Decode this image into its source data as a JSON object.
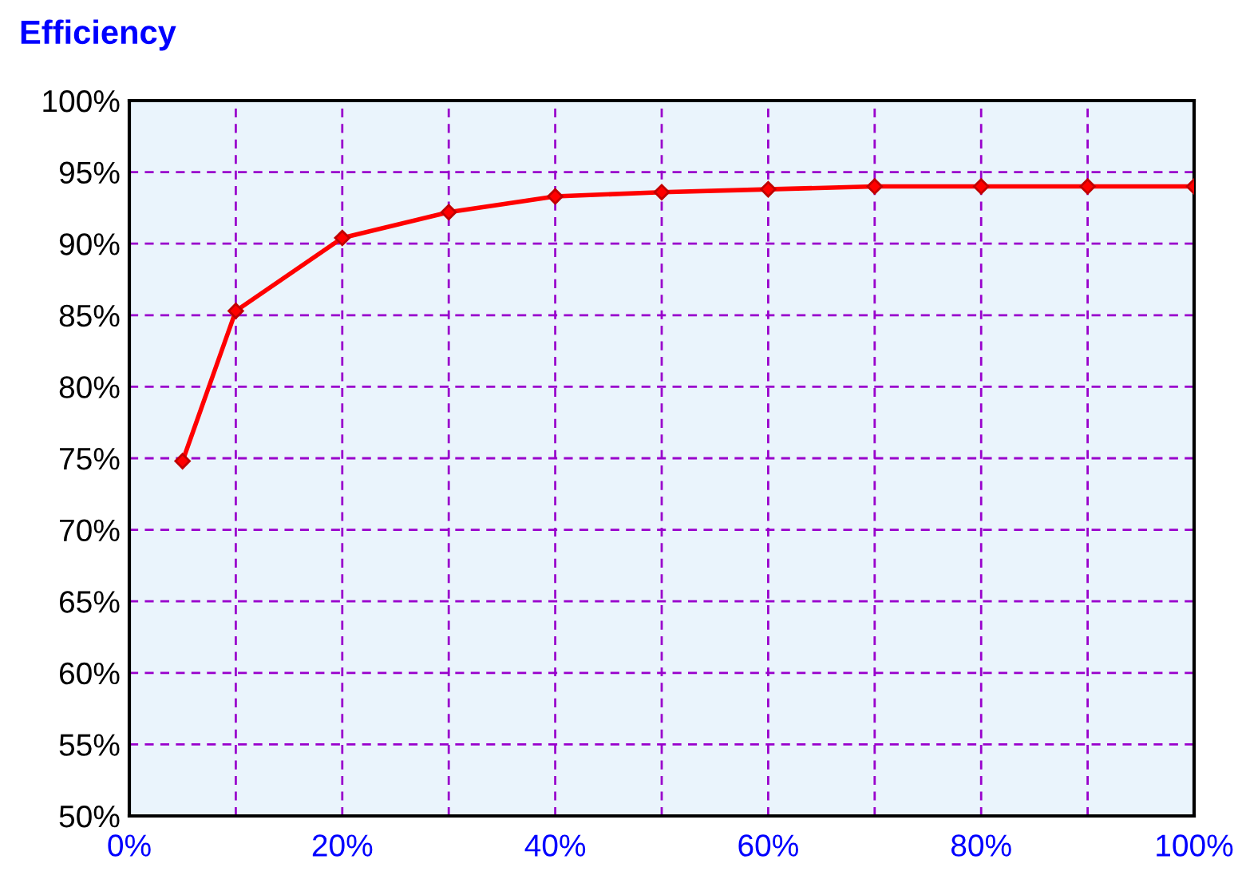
{
  "chart_data": {
    "type": "line",
    "title": "Efficiency",
    "x": [
      5,
      10,
      20,
      30,
      40,
      50,
      60,
      70,
      80,
      90,
      100
    ],
    "series": [
      {
        "color": "#ff0000",
        "values": [
          74.8,
          85.3,
          90.4,
          92.2,
          93.3,
          93.6,
          93.8,
          94.0,
          94.0,
          94.0,
          94.0
        ]
      }
    ],
    "xlim": [
      0,
      100
    ],
    "xticks": [
      {
        "value": 0,
        "label": "0%"
      },
      {
        "value": 10,
        "label": null
      },
      {
        "value": 20,
        "label": "20%"
      },
      {
        "value": 30,
        "label": null
      },
      {
        "value": 40,
        "label": "40%"
      },
      {
        "value": 50,
        "label": null
      },
      {
        "value": 60,
        "label": "60%"
      },
      {
        "value": 70,
        "label": null
      },
      {
        "value": 80,
        "label": "80%"
      },
      {
        "value": 90,
        "label": null
      },
      {
        "value": 100,
        "label": "100%"
      }
    ],
    "ylim": [
      50,
      100
    ],
    "yticks": [
      {
        "value": 50,
        "label": "50%"
      },
      {
        "value": 55,
        "label": "55%"
      },
      {
        "value": 60,
        "label": "60%"
      },
      {
        "value": 65,
        "label": "65%"
      },
      {
        "value": 70,
        "label": "70%"
      },
      {
        "value": 75,
        "label": "75%"
      },
      {
        "value": 80,
        "label": "80%"
      },
      {
        "value": 85,
        "label": "85%"
      },
      {
        "value": 90,
        "label": "90%"
      },
      {
        "value": 95,
        "label": "95%"
      },
      {
        "value": 100,
        "label": "100%"
      }
    ],
    "grid": true,
    "marker": "diamond",
    "line_style": "solid"
  }
}
